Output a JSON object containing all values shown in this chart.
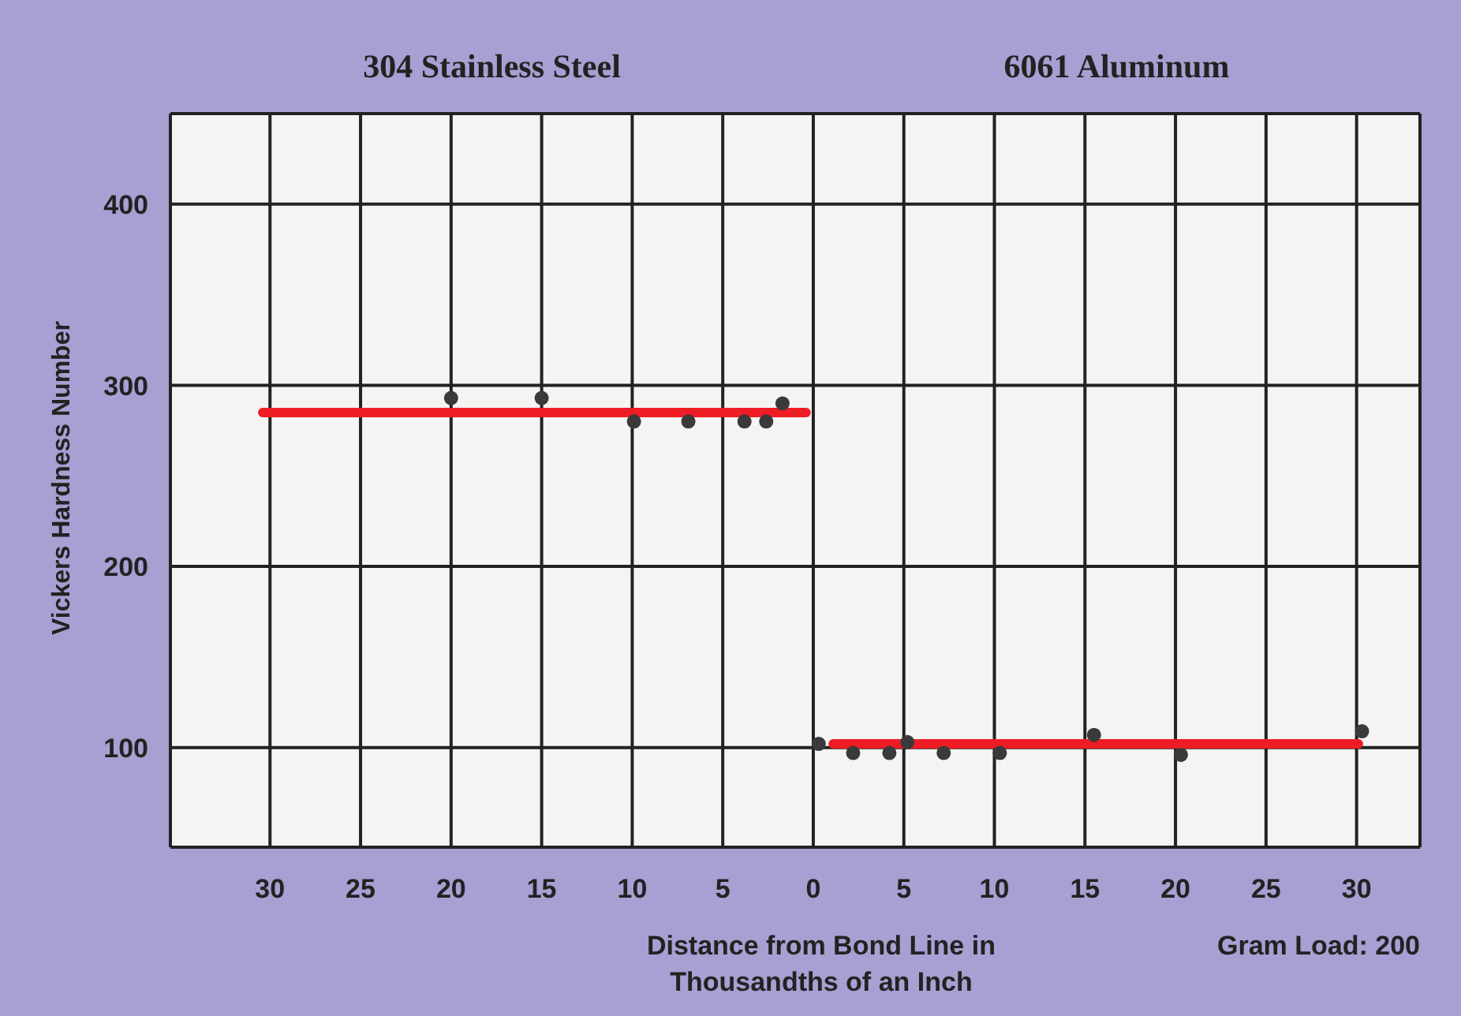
{
  "chart_data": {
    "type": "scatter",
    "ylabel": "Vickers Hardness Number",
    "xlabel": "Distance from Bond Line in Thousandths of an Inch",
    "annotations": [
      "304 Stainless Steel",
      "6061 Aluminum",
      "Gram Load: 200"
    ],
    "xlim": [
      -35.5,
      33.5
    ],
    "xticks": [
      {
        "value": -30,
        "label": "30"
      },
      {
        "value": -25,
        "label": "25"
      },
      {
        "value": -20,
        "label": "20"
      },
      {
        "value": -15,
        "label": "15"
      },
      {
        "value": -10,
        "label": "10"
      },
      {
        "value": -5,
        "label": "5"
      },
      0,
      5,
      10,
      15,
      20,
      25,
      30
    ],
    "ylim": [
      45,
      450
    ],
    "yticks": [
      100,
      200,
      300,
      400
    ],
    "grid": true,
    "series": [
      {
        "marker": "circle",
        "color": "#3a3a3a",
        "x": [
          -20,
          -15,
          -9.9,
          -6.9,
          -3.8,
          -2.6,
          -1.7
        ],
        "values": [
          293,
          293,
          280,
          280,
          280,
          280,
          290
        ]
      },
      {
        "marker": "circle",
        "color": "#3a3a3a",
        "x": [
          0.3,
          2.2,
          4.2,
          5.2,
          7.2,
          10.3,
          15.5,
          20.3,
          30.3
        ],
        "values": [
          102,
          97,
          97,
          103,
          97,
          97,
          107,
          96,
          109
        ]
      },
      {
        "type": "line",
        "color": "#ee1c24",
        "x": [
          -30.4,
          -0.4
        ],
        "values": [
          285,
          285
        ]
      },
      {
        "type": "line",
        "color": "#ee1c24",
        "x": [
          1.1,
          30.1
        ],
        "values": [
          102,
          102
        ]
      }
    ]
  }
}
